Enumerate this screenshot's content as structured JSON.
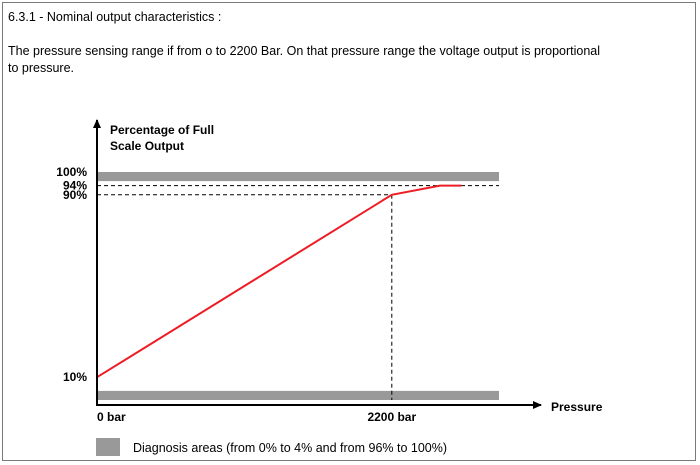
{
  "heading": "6.3.1 - Nominal output characteristics :",
  "description_line1": "The pressure sensing range if from o to 2200 Bar. On that pressure range the voltage output is proportional",
  "description_line2": "to pressure.",
  "colors": {
    "line": "#ee1c24",
    "diagnosis_area": "#999999",
    "axis": "#000000",
    "dashed": "#000000"
  },
  "chart_data": {
    "type": "line",
    "title": "",
    "ylabel_line1": "Percentage of Full",
    "ylabel_line2": "Scale Output",
    "xlabel": "Pressure",
    "x_unit": "bar",
    "xlim": [
      0,
      3000
    ],
    "ylim": [
      0,
      100
    ],
    "y_ticks": [
      {
        "value": 10,
        "label": "10%"
      },
      {
        "value": 90,
        "label": "90%"
      },
      {
        "value": 94,
        "label": "94%"
      },
      {
        "value": 100,
        "label": "100%"
      }
    ],
    "x_ticks": [
      {
        "value": 0,
        "label": "0 bar"
      },
      {
        "value": 2200,
        "label": "2200 bar"
      }
    ],
    "series": [
      {
        "x": [
          0,
          2200,
          2560,
          2720
        ],
        "y": [
          10,
          90,
          94,
          94
        ]
      }
    ],
    "reference_lines": [
      {
        "type": "horizontal",
        "y": 94
      },
      {
        "type": "horizontal",
        "y": 90
      },
      {
        "type": "vertical",
        "x": 2200
      }
    ],
    "diagnosis_bands": [
      {
        "y_from": 0,
        "y_to": 4
      },
      {
        "y_from": 96,
        "y_to": 100
      }
    ],
    "legend_label": "Diagnosis areas (from 0% to 4% and from 96% to 100%)"
  }
}
